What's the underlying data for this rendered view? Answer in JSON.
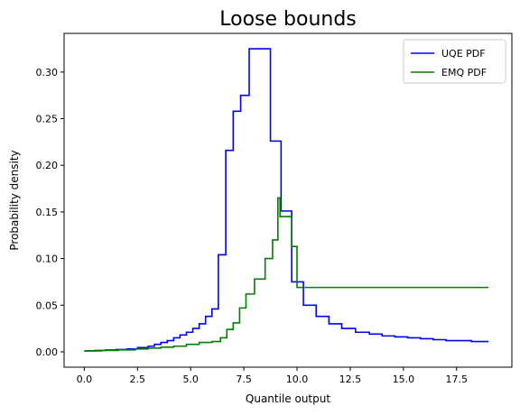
{
  "chart_data": {
    "type": "line",
    "title": "Loose bounds",
    "xlabel": "Quantile output",
    "ylabel": "Probability density",
    "xlim": [
      -0.95,
      20.1
    ],
    "ylim": [
      -0.0165,
      0.3415
    ],
    "xticks": [
      0.0,
      2.5,
      5.0,
      7.5,
      10.0,
      12.5,
      15.0,
      17.5
    ],
    "xtick_labels": [
      "0.0",
      "2.5",
      "5.0",
      "7.5",
      "10.0",
      "12.5",
      "15.0",
      "17.5"
    ],
    "yticks": [
      0.0,
      0.05,
      0.1,
      0.15,
      0.2,
      0.25,
      0.3
    ],
    "ytick_labels": [
      "0.00",
      "0.05",
      "0.10",
      "0.15",
      "0.20",
      "0.25",
      "0.30"
    ],
    "grid": false,
    "legend_position": "top-right",
    "step": "post",
    "series": [
      {
        "name": "UQE PDF",
        "color": "#0000ff",
        "x": [
          0.0,
          0.5,
          1.0,
          1.5,
          2.0,
          2.5,
          3.0,
          3.3,
          3.6,
          3.9,
          4.2,
          4.5,
          4.8,
          5.1,
          5.4,
          5.7,
          6.0,
          6.3,
          6.65,
          7.0,
          7.35,
          7.75,
          8.25,
          8.75,
          9.25,
          9.75,
          10.3,
          10.9,
          11.5,
          12.1,
          12.75,
          13.4,
          14.0,
          14.6,
          15.2,
          15.8,
          16.4,
          17.0,
          17.6,
          18.2,
          19.0
        ],
        "y": [
          0.001,
          0.0015,
          0.002,
          0.0025,
          0.003,
          0.0045,
          0.006,
          0.008,
          0.01,
          0.012,
          0.015,
          0.018,
          0.021,
          0.025,
          0.03,
          0.038,
          0.046,
          0.104,
          0.216,
          0.258,
          0.275,
          0.325,
          0.325,
          0.226,
          0.151,
          0.075,
          0.05,
          0.038,
          0.03,
          0.025,
          0.021,
          0.019,
          0.017,
          0.016,
          0.015,
          0.014,
          0.013,
          0.012,
          0.012,
          0.011,
          0.011
        ]
      },
      {
        "name": "EMQ PDF",
        "color": "#008000",
        "x": [
          0.0,
          0.8,
          1.6,
          2.4,
          3.0,
          3.6,
          4.2,
          4.8,
          5.4,
          6.0,
          6.4,
          6.7,
          7.0,
          7.3,
          7.6,
          8.0,
          8.5,
          8.85,
          9.1,
          9.2,
          9.4,
          9.75,
          10.0,
          10.5,
          11.0,
          12.0,
          13.0,
          14.0,
          15.0,
          16.0,
          17.0,
          18.0,
          19.0
        ],
        "y": [
          0.001,
          0.0015,
          0.002,
          0.003,
          0.004,
          0.005,
          0.006,
          0.008,
          0.01,
          0.011,
          0.015,
          0.024,
          0.031,
          0.047,
          0.062,
          0.078,
          0.1,
          0.12,
          0.165,
          0.145,
          0.145,
          0.113,
          0.069,
          0.069,
          0.069,
          0.069,
          0.069,
          0.069,
          0.069,
          0.069,
          0.069,
          0.069,
          0.069
        ]
      }
    ]
  }
}
